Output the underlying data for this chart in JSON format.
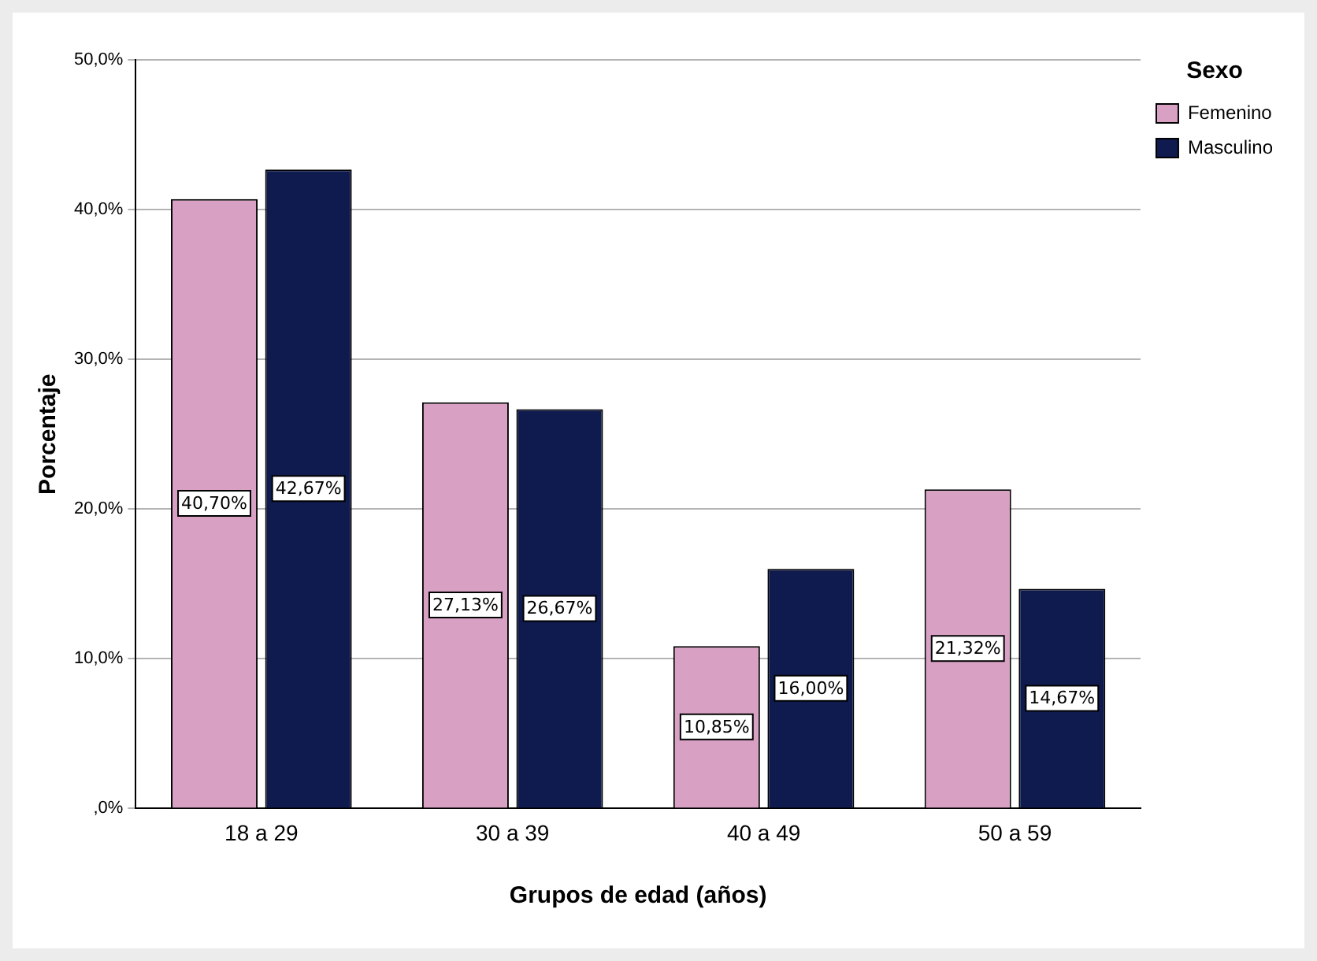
{
  "chart_data": {
    "type": "bar",
    "xlabel": "Grupos de edad (años)",
    "ylabel": "Porcentaje",
    "legend_title": "Sexo",
    "legend": "top right",
    "grid": "y",
    "categories": [
      "18 a 29",
      "30 a 39",
      "40 a 49",
      "50 a 59"
    ],
    "series": [
      {
        "name": "Femenino",
        "color": "#d8a1c4",
        "values": [
          40.7,
          27.13,
          10.85,
          21.32
        ],
        "value_labels": [
          "40,70%",
          "27,13%",
          "10,85%",
          "21,32%"
        ]
      },
      {
        "name": "Masculino",
        "color": "#0f1a4f",
        "values": [
          42.67,
          26.67,
          16.0,
          14.67
        ],
        "value_labels": [
          "42,67%",
          "26,67%",
          "16,00%",
          "14,67%"
        ]
      }
    ],
    "ylim": [
      0,
      50
    ],
    "yticks": [
      {
        "value": 0,
        "label": ",0%"
      },
      {
        "value": 10,
        "label": "10,0%"
      },
      {
        "value": 20,
        "label": "20,0%"
      },
      {
        "value": 30,
        "label": "30,0%"
      },
      {
        "value": 40,
        "label": "40,0%"
      },
      {
        "value": 50,
        "label": "50,0%"
      }
    ]
  }
}
